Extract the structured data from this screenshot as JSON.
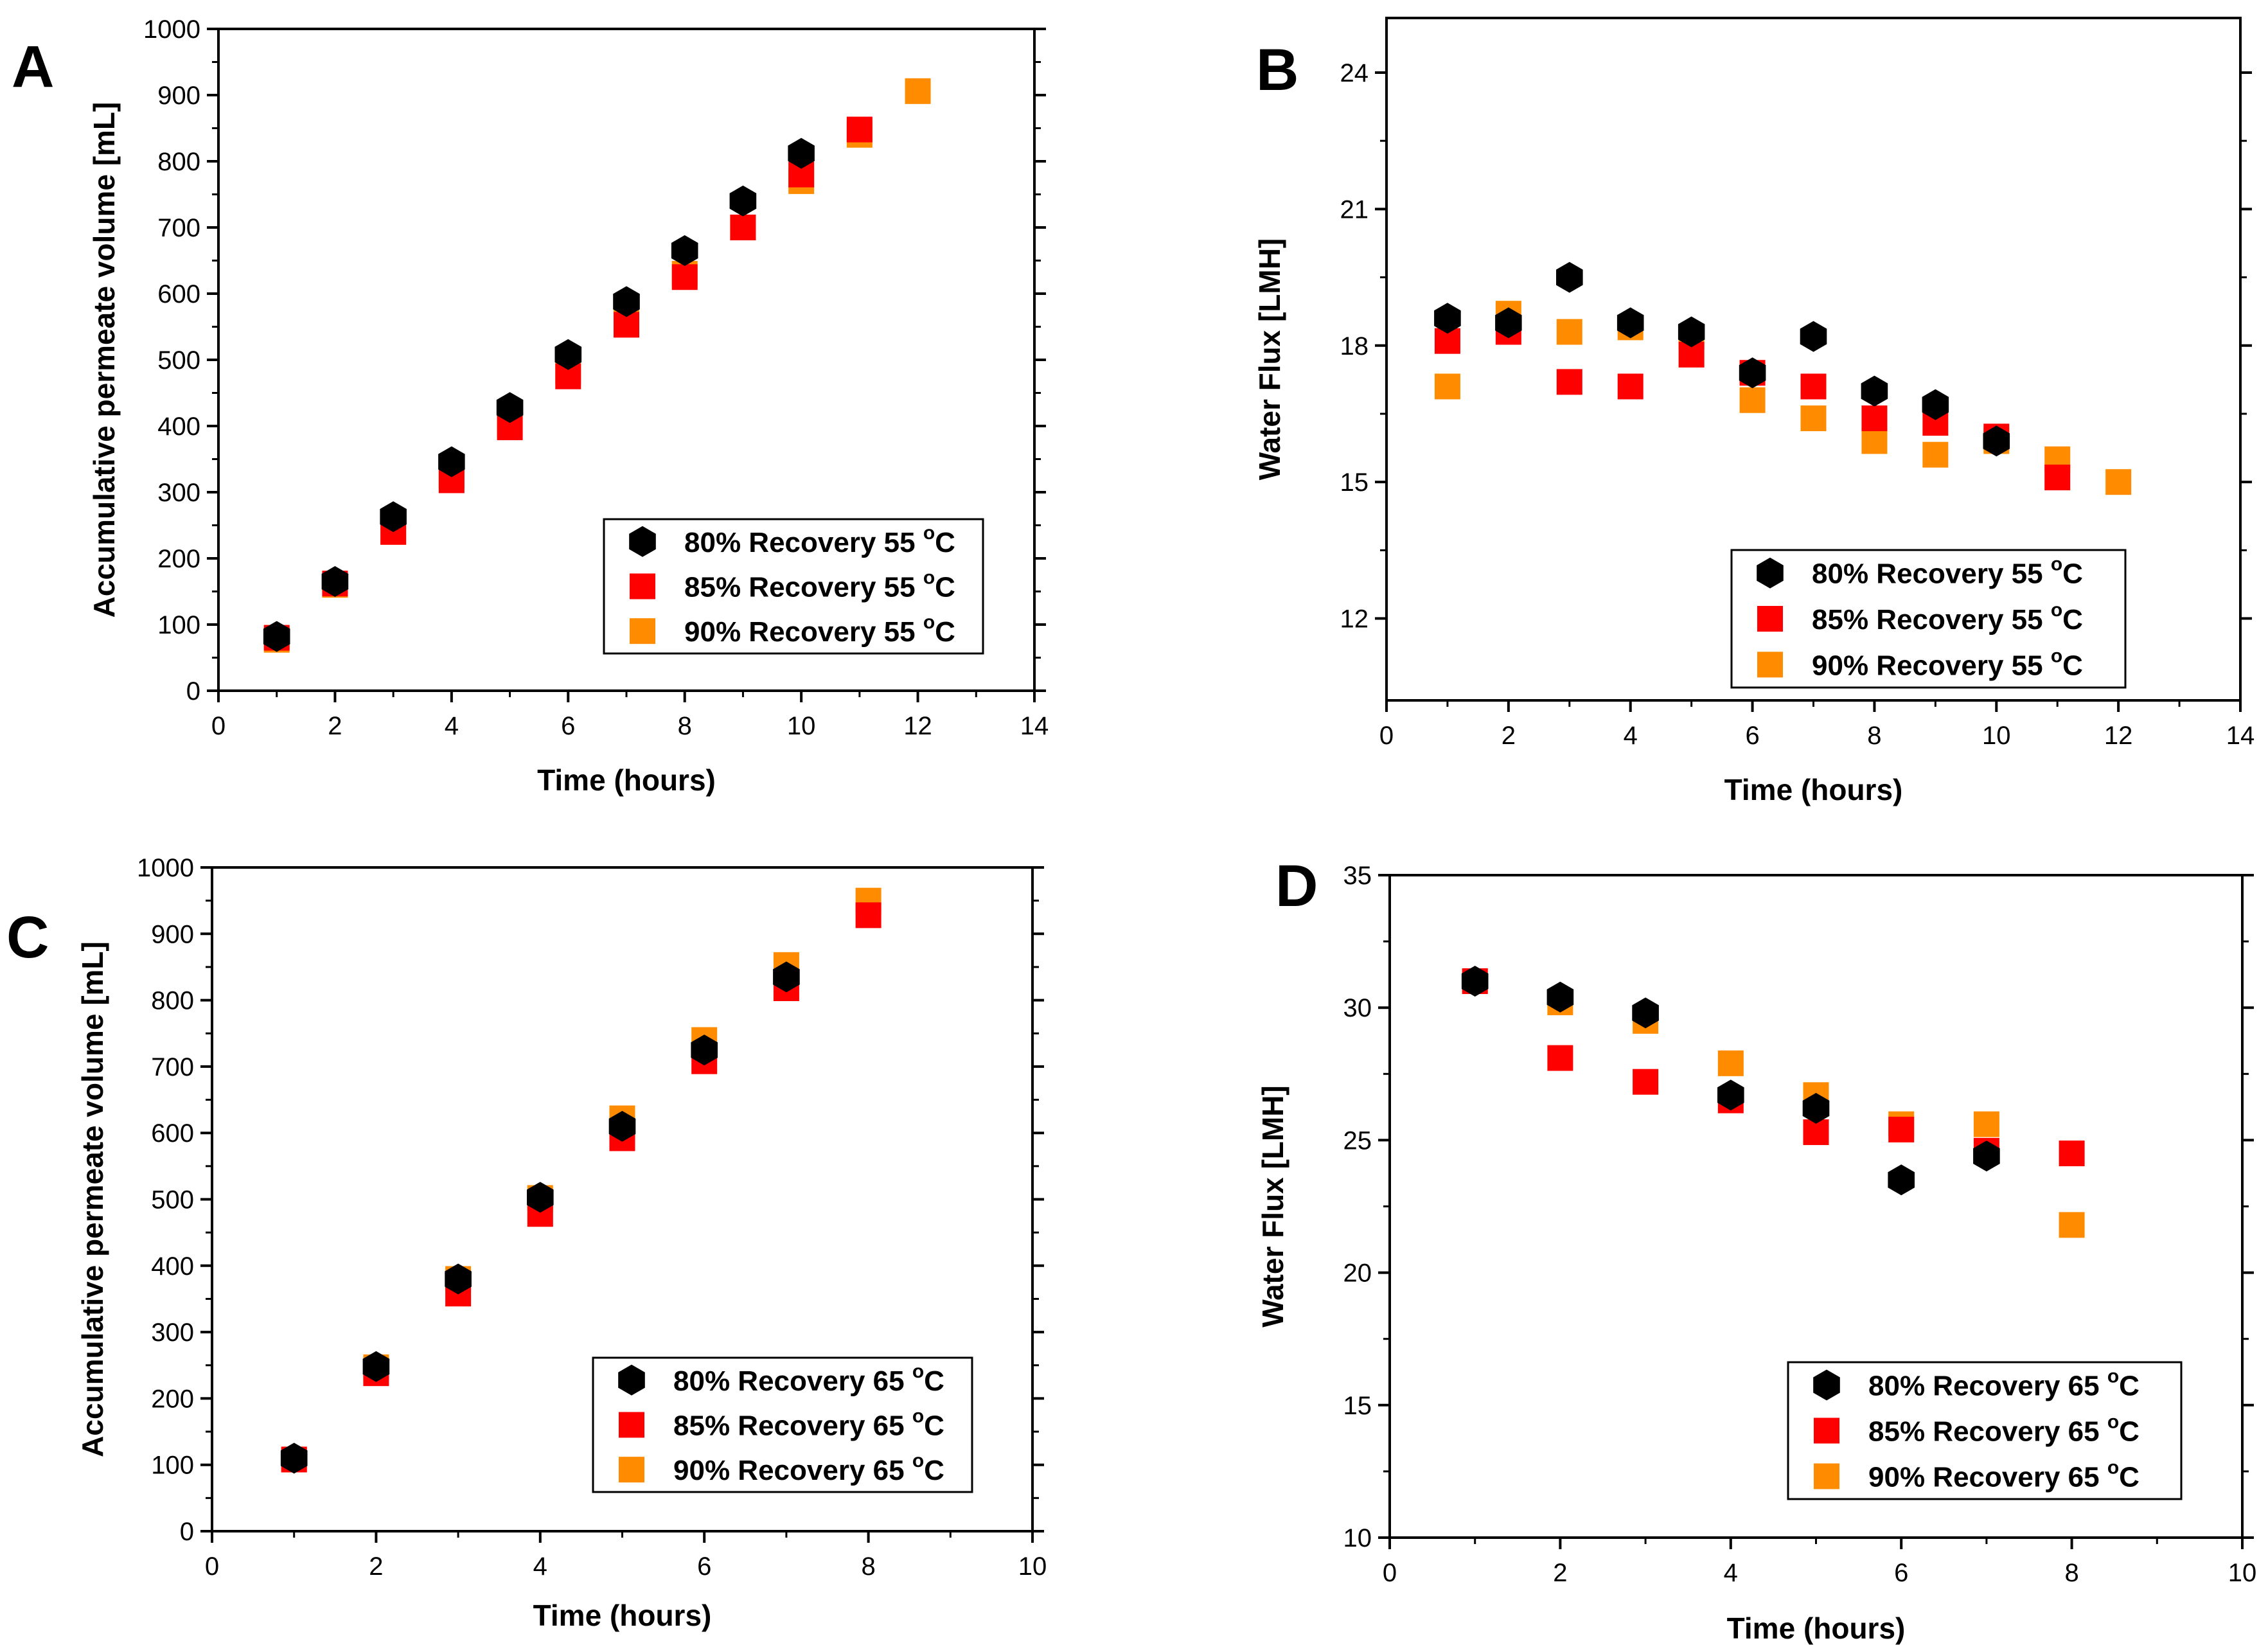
{
  "colors": {
    "s80": "#000000",
    "s85": "#ff0000",
    "s90": "#ff8c00"
  },
  "chart_data": [
    {
      "panel": "A",
      "type": "scatter",
      "xlabel": "Time (hours)",
      "ylabel": "Accumulative permeate volume [mL]",
      "xlim": [
        0,
        14
      ],
      "ylim": [
        0,
        1000
      ],
      "xticks": [
        0,
        2,
        4,
        6,
        8,
        10,
        12,
        14
      ],
      "yticks": [
        0,
        100,
        200,
        300,
        400,
        500,
        600,
        700,
        800,
        900,
        1000
      ],
      "legend_position": "bottom-right",
      "series": [
        {
          "name": "80% Recovery 55 ",
          "sup": "o",
          "unit": "C",
          "marker": "hexagon",
          "color_key": "s80",
          "x": [
            1,
            2,
            3,
            4,
            5,
            6,
            7,
            8,
            9,
            10
          ],
          "y": [
            82,
            165,
            263,
            346,
            428,
            508,
            588,
            665,
            740,
            812
          ]
        },
        {
          "name": "85% Recovery 55 ",
          "sup": "o",
          "unit": "C",
          "marker": "square",
          "color_key": "s85",
          "x": [
            1,
            2,
            3,
            4,
            5,
            6,
            7,
            8,
            9,
            10,
            11
          ],
          "y": [
            80,
            162,
            240,
            318,
            398,
            475,
            553,
            625,
            700,
            780,
            848
          ]
        },
        {
          "name": "90% Recovery 55 ",
          "sup": "o",
          "unit": "C",
          "marker": "square",
          "color_key": "s90",
          "x": [
            1,
            2,
            3,
            4,
            5,
            6,
            7,
            8,
            9,
            10,
            11,
            12
          ],
          "y": [
            77,
            160,
            240,
            325,
            405,
            483,
            560,
            630,
            700,
            770,
            840,
            906
          ]
        }
      ]
    },
    {
      "panel": "B",
      "type": "scatter",
      "xlabel": "Time (hours)",
      "ylabel": "Water Flux [LMH]",
      "xlim": [
        0,
        14
      ],
      "ylim": [
        10.2,
        25.2
      ],
      "xticks": [
        0,
        2,
        4,
        6,
        8,
        10,
        12,
        14
      ],
      "yticks": [
        12,
        15,
        18,
        21,
        24
      ],
      "legend_position": "bottom-right",
      "series": [
        {
          "name": "80% Recovery 55 ",
          "sup": "o",
          "unit": "C",
          "marker": "hexagon",
          "color_key": "s80",
          "x": [
            1,
            2,
            3,
            4,
            5,
            6,
            7,
            8,
            9,
            10
          ],
          "y": [
            18.6,
            18.5,
            19.5,
            18.5,
            18.3,
            17.4,
            18.2,
            17.0,
            16.7,
            15.9
          ]
        },
        {
          "name": "85% Recovery 55 ",
          "sup": "o",
          "unit": "C",
          "marker": "square",
          "color_key": "s85",
          "x": [
            1,
            2,
            3,
            4,
            5,
            6,
            7,
            8,
            9,
            10,
            11
          ],
          "y": [
            18.1,
            18.3,
            17.2,
            17.1,
            17.8,
            17.4,
            17.1,
            16.4,
            16.3,
            16.0,
            15.1
          ]
        },
        {
          "name": "90% Recovery 55 ",
          "sup": "o",
          "unit": "C",
          "marker": "square",
          "color_key": "s90",
          "x": [
            1,
            2,
            3,
            4,
            5,
            6,
            7,
            8,
            9,
            10,
            11,
            12
          ],
          "y": [
            17.1,
            18.7,
            18.3,
            18.4,
            18.2,
            16.8,
            16.4,
            15.9,
            15.6,
            15.9,
            15.5,
            15.0
          ]
        }
      ]
    },
    {
      "panel": "C",
      "type": "scatter",
      "xlabel": "Time (hours)",
      "ylabel": "Accumulative permeate volume [mL]",
      "xlim": [
        0,
        10
      ],
      "ylim": [
        0,
        1000
      ],
      "xticks": [
        0,
        2,
        4,
        6,
        8,
        10
      ],
      "yticks": [
        0,
        100,
        200,
        300,
        400,
        500,
        600,
        700,
        800,
        900,
        1000
      ],
      "legend_position": "bottom-right",
      "series": [
        {
          "name": "80% Recovery 65 ",
          "sup": "o",
          "unit": "C",
          "marker": "hexagon",
          "color_key": "s80",
          "x": [
            1,
            2,
            3,
            4,
            5,
            6,
            7
          ],
          "y": [
            110,
            248,
            380,
            503,
            610,
            725,
            835
          ]
        },
        {
          "name": "85% Recovery 65 ",
          "sup": "o",
          "unit": "C",
          "marker": "square",
          "color_key": "s85",
          "x": [
            1,
            2,
            3,
            4,
            5,
            6,
            7,
            8
          ],
          "y": [
            108,
            238,
            358,
            478,
            592,
            708,
            818,
            928
          ]
        },
        {
          "name": "90% Recovery 65 ",
          "sup": "o",
          "unit": "C",
          "marker": "square",
          "color_key": "s90",
          "x": [
            1,
            2,
            3,
            4,
            5,
            6,
            7,
            8
          ],
          "y": [
            108,
            247,
            380,
            502,
            622,
            740,
            853,
            950
          ]
        }
      ]
    },
    {
      "panel": "D",
      "type": "scatter",
      "xlabel": "Time (hours)",
      "ylabel": "Water Flux [LMH]",
      "xlim": [
        0,
        10
      ],
      "ylim": [
        10,
        35
      ],
      "xticks": [
        0,
        2,
        4,
        6,
        8,
        10
      ],
      "yticks": [
        10,
        15,
        20,
        25,
        30,
        35
      ],
      "legend_position": "bottom-right",
      "series": [
        {
          "name": "80% Recovery 65 ",
          "sup": "o",
          "unit": "C",
          "marker": "hexagon",
          "color_key": "s80",
          "x": [
            1,
            2,
            3,
            4,
            5,
            6,
            7
          ],
          "y": [
            31.0,
            30.4,
            29.8,
            26.7,
            26.2,
            23.5,
            24.4
          ]
        },
        {
          "name": "85% Recovery 65 ",
          "sup": "o",
          "unit": "C",
          "marker": "square",
          "color_key": "s85",
          "x": [
            1,
            2,
            3,
            4,
            5,
            6,
            7,
            8
          ],
          "y": [
            31.0,
            28.1,
            27.2,
            26.5,
            25.3,
            25.4,
            24.6,
            24.5
          ]
        },
        {
          "name": "90% Recovery 65 ",
          "sup": "o",
          "unit": "C",
          "marker": "square",
          "color_key": "s90",
          "x": [
            1,
            2,
            3,
            4,
            5,
            6,
            7,
            8
          ],
          "y": [
            31.0,
            30.2,
            29.5,
            27.9,
            26.7,
            25.6,
            25.6,
            21.8
          ]
        }
      ]
    }
  ]
}
